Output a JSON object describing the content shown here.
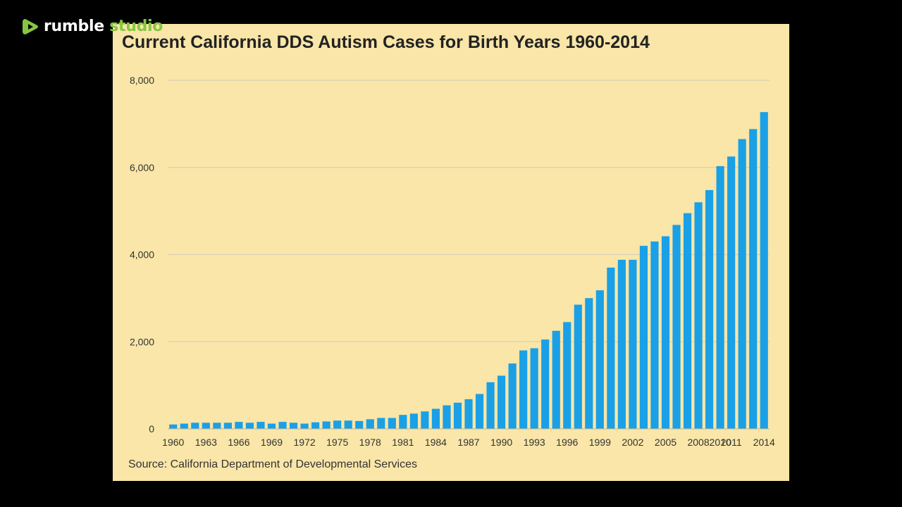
{
  "watermark": {
    "brand_word": "rumble",
    "product_word": "studio",
    "icon": "rumble-play-icon",
    "brand_color": "#85c742"
  },
  "panel": {
    "background": "#f9e6a8"
  },
  "chart_data": {
    "type": "bar",
    "title": "Current California DDS Autism Cases for Birth Years 1960-2014",
    "xlabel": "",
    "ylabel": "",
    "source": "Source: California Department of Developmental Services",
    "ylim": [
      0,
      8000
    ],
    "yticks": [
      0,
      2000,
      4000,
      6000,
      8000
    ],
    "ytick_labels": [
      "0",
      "2,000",
      "4,000",
      "6,000",
      "8,000"
    ],
    "grid": true,
    "bar_color": "#1aa0e6",
    "categories": [
      "1960",
      "1961",
      "1962",
      "1963",
      "1964",
      "1965",
      "1966",
      "1967",
      "1968",
      "1969",
      "1970",
      "1971",
      "1972",
      "1973",
      "1974",
      "1975",
      "1976",
      "1977",
      "1978",
      "1979",
      "1980",
      "1981",
      "1982",
      "1983",
      "1984",
      "1985",
      "1986",
      "1987",
      "1988",
      "1989",
      "1990",
      "1991",
      "1992",
      "1993",
      "1994",
      "1995",
      "1996",
      "1997",
      "1998",
      "1999",
      "2000",
      "2001",
      "2002",
      "2003",
      "2004",
      "2005",
      "2006",
      "2007",
      "2008",
      "2009",
      "2010",
      "2011",
      "2012",
      "2013",
      "2014"
    ],
    "x_tick_labels": [
      "1960",
      "1963",
      "1966",
      "1969",
      "1972",
      "1975",
      "1978",
      "1981",
      "1984",
      "1987",
      "1990",
      "1993",
      "1996",
      "1999",
      "2002",
      "2005",
      "2008",
      "2010",
      "2011",
      "2014"
    ],
    "values": [
      100,
      120,
      140,
      140,
      140,
      140,
      160,
      140,
      160,
      120,
      160,
      140,
      120,
      150,
      170,
      190,
      190,
      180,
      220,
      250,
      250,
      320,
      350,
      400,
      460,
      540,
      600,
      680,
      800,
      1070,
      1220,
      1500,
      1800,
      1850,
      2050,
      2250,
      2450,
      2850,
      3000,
      3180,
      3700,
      3880,
      3880,
      4200,
      4300,
      4420,
      4680,
      4950,
      5200,
      5480,
      6030,
      6250,
      6650,
      6880,
      7270
    ]
  }
}
